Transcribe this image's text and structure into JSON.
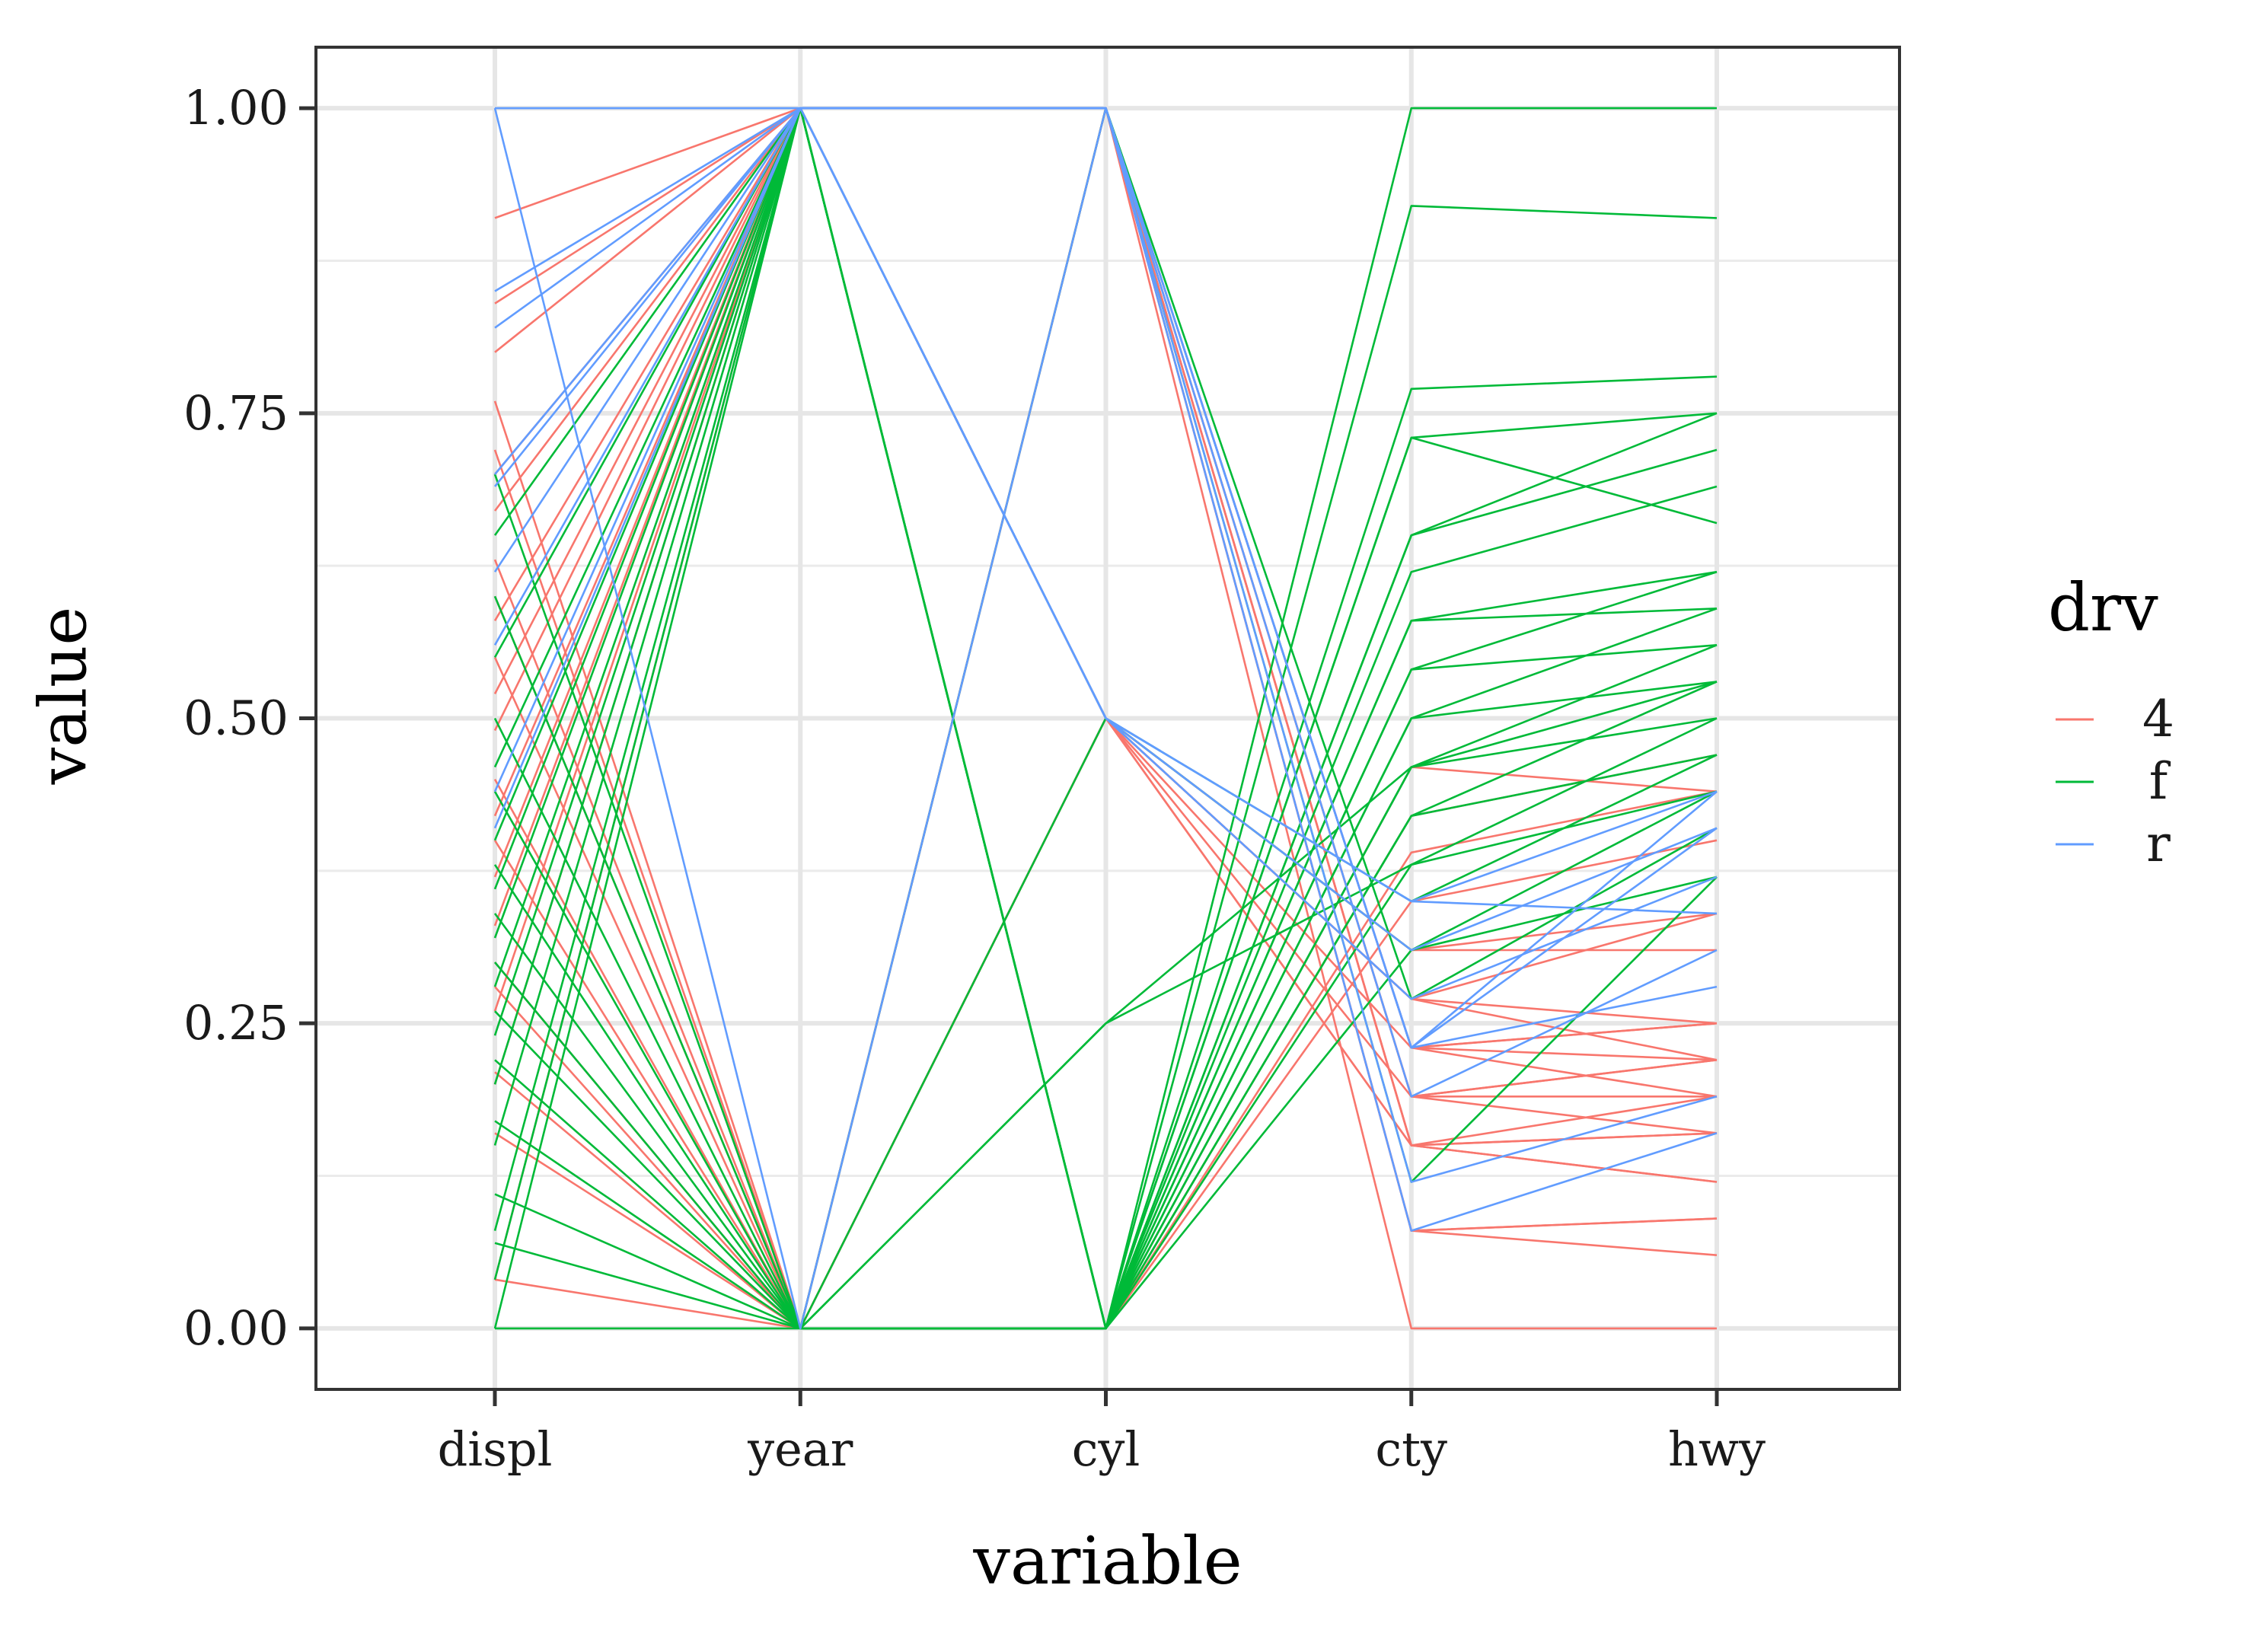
{
  "chart_data": {
    "type": "line",
    "subtype": "parallel-coordinates",
    "title": "",
    "xlabel": "variable",
    "ylabel": "value",
    "categories": [
      "displ",
      "year",
      "cyl",
      "cty",
      "hwy"
    ],
    "yticks": [
      "0.00",
      "0.25",
      "0.50",
      "0.75",
      "1.00"
    ],
    "ylim": [
      -0.05,
      1.05
    ],
    "grid": true,
    "legend": {
      "title": "drv",
      "placement": "right",
      "entries": [
        {
          "label": "4",
          "color": "#F8766D"
        },
        {
          "label": "f",
          "color": "#00BA38"
        },
        {
          "label": "r",
          "color": "#619CFF"
        }
      ]
    },
    "series": [
      {
        "group": "4",
        "color": "#F8766D",
        "lines": [
          [
            0.91,
            1,
            1,
            0,
            0
          ],
          [
            0.8,
            1,
            1,
            0.08,
            0.06
          ],
          [
            0.76,
            0,
            1,
            0.08,
            0.09
          ],
          [
            0.84,
            1,
            1,
            0.15,
            0.12
          ],
          [
            0.72,
            0,
            1,
            0.15,
            0.16
          ],
          [
            0.67,
            1,
            1,
            0.19,
            0.19
          ],
          [
            0.63,
            0,
            1,
            0.19,
            0.16
          ],
          [
            0.58,
            1,
            1,
            0.23,
            0.22
          ],
          [
            0.55,
            0,
            1,
            0.23,
            0.25
          ],
          [
            0.49,
            1,
            0.5,
            0.27,
            0.22
          ],
          [
            0.45,
            0,
            0.5,
            0.27,
            0.25
          ],
          [
            0.42,
            1,
            0.5,
            0.31,
            0.31
          ],
          [
            0.4,
            0,
            0.5,
            0.31,
            0.34
          ],
          [
            0.33,
            1,
            0.5,
            0.23,
            0.19
          ],
          [
            0.28,
            0,
            0.5,
            0.19,
            0.22
          ],
          [
            0.26,
            1,
            0.5,
            0.15,
            0.12
          ],
          [
            0.21,
            0,
            0.5,
            0.15,
            0.16
          ],
          [
            0.2,
            1,
            0,
            0.35,
            0.4
          ],
          [
            0.16,
            0,
            0,
            0.39,
            0.44
          ],
          [
            0.04,
            1,
            0,
            0.42,
            0.47
          ],
          [
            0.04,
            0,
            0,
            0.46,
            0.44
          ],
          [
            0.37,
            1,
            1,
            0.08,
            0.09
          ],
          [
            0.3,
            0,
            0.5,
            0.27,
            0.34
          ],
          [
            0.52,
            1,
            1,
            0.23,
            0.25
          ],
          [
            0.6,
            0,
            1,
            0.19,
            0.22
          ],
          [
            0.7,
            1,
            1,
            0.15,
            0.19
          ]
        ]
      },
      {
        "group": "f",
        "color": "#00BA38",
        "lines": [
          [
            0,
            0,
            0,
            1,
            1
          ],
          [
            0,
            1,
            0,
            0.92,
            0.91
          ],
          [
            0.04,
            1,
            0,
            0.77,
            0.78
          ],
          [
            0.07,
            0,
            0,
            0.73,
            0.75
          ],
          [
            0.08,
            1,
            0,
            0.73,
            0.66
          ],
          [
            0.11,
            0,
            0,
            0.65,
            0.72
          ],
          [
            0.15,
            1,
            0,
            0.65,
            0.75
          ],
          [
            0.17,
            0,
            0,
            0.62,
            0.69
          ],
          [
            0.2,
            1,
            0,
            0.58,
            0.62
          ],
          [
            0.22,
            0,
            0,
            0.58,
            0.59
          ],
          [
            0.24,
            1,
            0,
            0.54,
            0.62
          ],
          [
            0.26,
            0,
            0,
            0.54,
            0.56
          ],
          [
            0.28,
            1,
            0,
            0.5,
            0.53
          ],
          [
            0.3,
            0,
            0,
            0.5,
            0.59
          ],
          [
            0.32,
            1,
            0,
            0.46,
            0.53
          ],
          [
            0.34,
            0,
            0,
            0.46,
            0.5
          ],
          [
            0.36,
            1,
            0,
            0.42,
            0.47
          ],
          [
            0.38,
            0,
            0,
            0.42,
            0.53
          ],
          [
            0.4,
            1,
            0,
            0.38,
            0.44
          ],
          [
            0.44,
            0,
            0.25,
            0.38,
            0.5
          ],
          [
            0.46,
            1,
            0.5,
            0.35,
            0.47
          ],
          [
            0.5,
            0,
            0.5,
            0.31,
            0.44
          ],
          [
            0.55,
            1,
            1,
            0.12,
            0.37
          ],
          [
            0.6,
            0,
            0.25,
            0.46,
            0.56
          ],
          [
            0.65,
            1,
            0,
            0.31,
            0.37
          ],
          [
            0.7,
            0,
            1,
            0.27,
            0.41
          ]
        ]
      },
      {
        "group": "r",
        "color": "#619CFF",
        "lines": [
          [
            1,
            1,
            1,
            0.23,
            0.41
          ],
          [
            1,
            0,
            1,
            0.23,
            0.44
          ],
          [
            0.85,
            1,
            1,
            0.19,
            0.31
          ],
          [
            0.82,
            1,
            1,
            0.12,
            0.19
          ],
          [
            0.7,
            1,
            1,
            0.08,
            0.16
          ],
          [
            0.56,
            1,
            0.5,
            0.31,
            0.41
          ],
          [
            0.44,
            1,
            0.5,
            0.27,
            0.37
          ],
          [
            0.41,
            1,
            0.5,
            0.35,
            0.44
          ],
          [
            0.69,
            1,
            1,
            0.23,
            0.28
          ],
          [
            0.62,
            1,
            0.5,
            0.35,
            0.34
          ]
        ]
      }
    ]
  }
}
